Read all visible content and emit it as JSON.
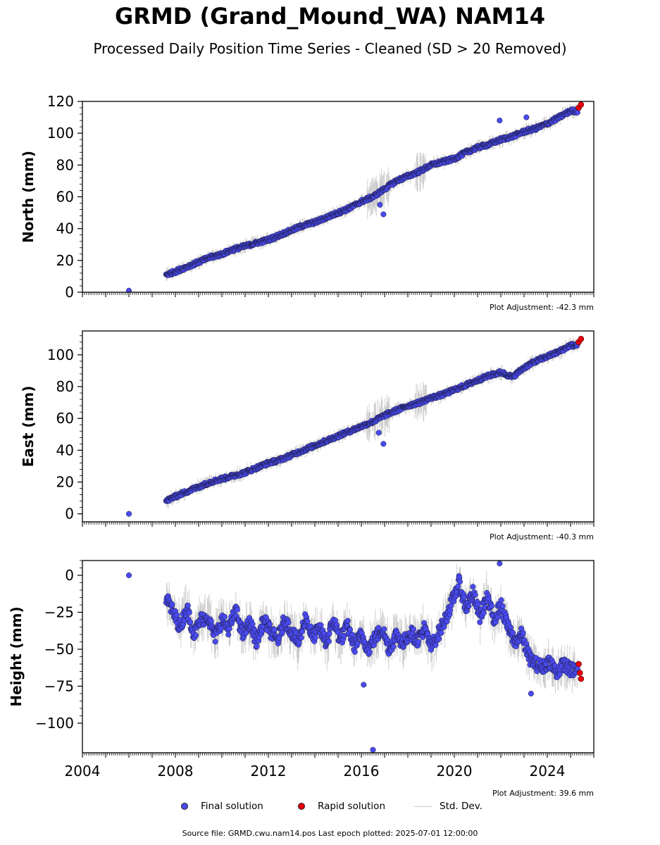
{
  "title": "GRMD (Grand_Mound_WA) NAM14",
  "subtitle": "Processed Daily Position Time Series - Cleaned (SD > 20 Removed)",
  "colors": {
    "final": "#4a4af2",
    "rapid": "#e8000b",
    "std": "#bdbdbd"
  },
  "legend": {
    "final": "Final solution",
    "rapid": "Rapid solution",
    "std": "Std. Dev."
  },
  "footer": "Source file: GRMD.cwu.nam14.pos  Last epoch plotted: 2025-07-01 12:00:00",
  "chart_data": [
    {
      "type": "scatter",
      "ylabel": "North (mm)",
      "adjustment": "Plot Adjustment: -42.3 mm",
      "xlim": [
        2004,
        2026
      ],
      "ylim": [
        0,
        120
      ],
      "yticks": [
        0,
        20,
        40,
        60,
        80,
        100,
        120
      ],
      "xticks": [],
      "series": [
        {
          "name": "Final solution",
          "x": [
            2006.0,
            2007.6,
            2008.0,
            2008.5,
            2009.0,
            2009.5,
            2010.0,
            2010.5,
            2011.0,
            2011.5,
            2012.0,
            2012.5,
            2013.0,
            2013.5,
            2014.0,
            2014.5,
            2015.0,
            2015.5,
            2016.0,
            2016.5,
            2017.0,
            2017.5,
            2018.0,
            2018.5,
            2019.0,
            2019.5,
            2020.0,
            2020.5,
            2021.0,
            2021.5,
            2022.0,
            2022.5,
            2023.0,
            2023.5,
            2024.0,
            2024.5,
            2025.0
          ],
          "y": [
            1,
            11,
            13,
            16,
            19,
            22,
            24,
            27,
            29,
            31,
            33,
            36,
            39,
            42,
            44,
            47,
            50,
            53,
            57,
            60,
            65,
            70,
            73,
            76,
            80,
            82,
            84,
            88,
            91,
            93,
            96,
            98,
            101,
            103,
            106,
            110,
            114
          ]
        },
        {
          "name": "Rapid solution",
          "x": [
            2025.35,
            2025.45
          ],
          "y": [
            116,
            118
          ]
        }
      ],
      "outliers": {
        "x": [
          2016.95,
          2016.8,
          2021.95,
          2023.1
        ],
        "y": [
          49,
          55,
          108,
          110
        ]
      }
    },
    {
      "type": "scatter",
      "ylabel": "East (mm)",
      "adjustment": "Plot Adjustment: -40.3 mm",
      "xlim": [
        2004,
        2026
      ],
      "ylim": [
        -5,
        115
      ],
      "yticks": [
        0,
        20,
        40,
        60,
        80,
        100
      ],
      "xticks": [],
      "series": [
        {
          "name": "Final solution",
          "x": [
            2006.0,
            2007.6,
            2008.0,
            2008.5,
            2009.0,
            2009.5,
            2010.0,
            2010.5,
            2011.0,
            2011.5,
            2012.0,
            2012.5,
            2013.0,
            2013.5,
            2014.0,
            2014.5,
            2015.0,
            2015.5,
            2016.0,
            2016.5,
            2017.0,
            2017.5,
            2018.0,
            2018.5,
            2019.0,
            2019.5,
            2020.0,
            2020.5,
            2021.0,
            2021.5,
            2022.0,
            2022.5,
            2023.0,
            2023.5,
            2024.0,
            2024.5,
            2025.0
          ],
          "y": [
            0,
            8,
            11,
            14,
            17,
            20,
            22,
            24,
            26,
            29,
            32,
            34,
            37,
            40,
            43,
            46,
            49,
            52,
            55,
            58,
            62,
            65,
            68,
            70,
            73,
            75,
            78,
            81,
            84,
            87,
            89,
            86,
            92,
            96,
            99,
            102,
            106
          ]
        },
        {
          "name": "Rapid solution",
          "x": [
            2025.35,
            2025.45
          ],
          "y": [
            108,
            110
          ]
        }
      ],
      "outliers": {
        "x": [
          2016.95,
          2016.75
        ],
        "y": [
          44,
          51
        ]
      }
    },
    {
      "type": "scatter",
      "ylabel": "Height (mm)",
      "adjustment": "Plot Adjustment: 39.6 mm",
      "xlim": [
        2004,
        2026
      ],
      "ylim": [
        -120,
        10
      ],
      "yticks": [
        0,
        -25,
        -50,
        -75,
        -100
      ],
      "yticklabels": [
        "0",
        "−25",
        "−50",
        "−75",
        "−100"
      ],
      "xticks": [
        2004,
        2008,
        2012,
        2016,
        2020,
        2024
      ],
      "series": [
        {
          "name": "Final solution",
          "x": [
            2006.0,
            2007.6,
            2007.9,
            2008.2,
            2008.5,
            2008.8,
            2009.1,
            2009.4,
            2009.7,
            2010.0,
            2010.3,
            2010.6,
            2010.9,
            2011.2,
            2011.5,
            2011.8,
            2012.1,
            2012.4,
            2012.7,
            2013.0,
            2013.3,
            2013.6,
            2013.9,
            2014.2,
            2014.5,
            2014.8,
            2015.1,
            2015.4,
            2015.7,
            2016.0,
            2016.3,
            2016.6,
            2016.9,
            2017.2,
            2017.5,
            2017.8,
            2018.1,
            2018.4,
            2018.7,
            2019.0,
            2019.3,
            2019.6,
            2019.9,
            2020.2,
            2020.5,
            2020.8,
            2021.1,
            2021.4,
            2021.7,
            2022.0,
            2022.3,
            2022.6,
            2022.9,
            2023.2,
            2023.5,
            2023.8,
            2024.1,
            2024.4,
            2024.7,
            2025.0
          ],
          "y": [
            0,
            -15,
            -25,
            -35,
            -22,
            -40,
            -30,
            -28,
            -42,
            -30,
            -36,
            -24,
            -40,
            -32,
            -45,
            -30,
            -38,
            -44,
            -30,
            -38,
            -46,
            -28,
            -42,
            -36,
            -46,
            -30,
            -44,
            -34,
            -48,
            -40,
            -50,
            -42,
            -36,
            -50,
            -40,
            -46,
            -38,
            -44,
            -36,
            -48,
            -40,
            -30,
            -18,
            -5,
            -22,
            -12,
            -28,
            -15,
            -30,
            -20,
            -35,
            -45,
            -40,
            -55,
            -60,
            -62,
            -58,
            -66,
            -60,
            -64
          ]
        },
        {
          "name": "Rapid solution",
          "x": [
            2025.35,
            2025.4,
            2025.45
          ],
          "y": [
            -60,
            -66,
            -70
          ]
        }
      ],
      "outliers": {
        "x": [
          2016.5,
          2021.95,
          2016.1,
          2023.3
        ],
        "y": [
          -118,
          8,
          -74,
          -80
        ]
      }
    }
  ]
}
